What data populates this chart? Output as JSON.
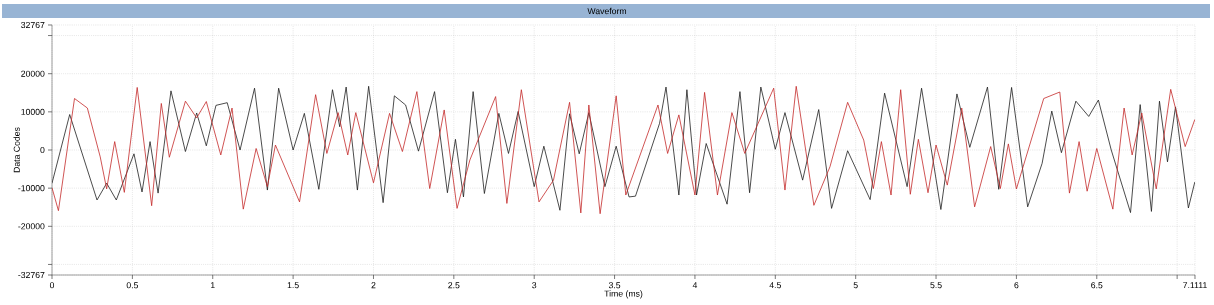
{
  "chart_data": {
    "type": "line",
    "title": "Waveform",
    "xlabel": "Time (ms)",
    "ylabel": "Data Codes",
    "xlim": [
      0,
      7.1111
    ],
    "ylim": [
      -32767,
      32767
    ],
    "xticks": [
      0,
      0.5,
      1,
      1.5,
      2,
      2.5,
      3,
      3.5,
      4,
      4.5,
      5,
      5.5,
      6,
      6.5,
      {
        "value": 7,
        "label": null
      },
      7.1111
    ],
    "yticks": [
      -32767,
      {
        "value": -30000,
        "label": null
      },
      -20000,
      -10000,
      0,
      10000,
      20000,
      {
        "value": 30000,
        "label": null
      },
      32767
    ],
    "grid": true,
    "series": [
      {
        "color": "#1e1e1e",
        "x": [
          0,
          0.11,
          0.28,
          0.34,
          0.4,
          0.51,
          0.56,
          0.61,
          0.66,
          0.74,
          0.83,
          0.9,
          0.96,
          1.02,
          1.09,
          1.17,
          1.26,
          1.34,
          1.41,
          1.5,
          1.57,
          1.66,
          1.745,
          1.79,
          1.83,
          1.9,
          1.97,
          2.06,
          2.13,
          2.2,
          2.28,
          2.38,
          2.46,
          2.51,
          2.56,
          2.62,
          2.69,
          2.78,
          2.84,
          2.9,
          3.0,
          3.06,
          3.16,
          3.22,
          3.28,
          3.34,
          3.44,
          3.51,
          3.59,
          3.63,
          3.78,
          3.82,
          3.9,
          3.95,
          4.01,
          4.07,
          4.2,
          4.28,
          4.34,
          4.41,
          4.5,
          4.56,
          4.67,
          4.77,
          4.85,
          4.95,
          5.09,
          5.18,
          5.32,
          5.41,
          5.53,
          5.63,
          5.71,
          5.82,
          5.89,
          5.97,
          6.07,
          6.16,
          6.22,
          6.28,
          6.37,
          6.45,
          6.51,
          6.59,
          6.71,
          6.77,
          6.84,
          6.89,
          6.94,
          6.99,
          7.07,
          7.11
        ],
        "values": [
          -8700,
          9300,
          -13100,
          -8700,
          -13100,
          -1000,
          -11000,
          2200,
          -11300,
          15500,
          -400,
          9700,
          1100,
          11700,
          12400,
          0,
          16200,
          -10500,
          16200,
          0,
          9600,
          -10300,
          15800,
          6100,
          16500,
          -10500,
          16700,
          -13800,
          14200,
          11800,
          -300,
          15300,
          -11200,
          2800,
          -12300,
          15300,
          -11400,
          9600,
          -900,
          10100,
          -9600,
          1000,
          -15800,
          9500,
          -1000,
          9800,
          -9600,
          1000,
          -12300,
          -12100,
          7000,
          16500,
          -11800,
          15800,
          -11800,
          1700,
          -14200,
          15300,
          -11200,
          16500,
          200,
          9800,
          -7900,
          10600,
          -15300,
          -200,
          -13000,
          14900,
          -9600,
          16200,
          -15600,
          14700,
          700,
          16500,
          -10300,
          16400,
          -14900,
          -3500,
          10200,
          -700,
          12800,
          8800,
          13100,
          0,
          -16400,
          11900,
          -16100,
          12800,
          -3100,
          11300,
          -15200,
          -8400
        ]
      },
      {
        "color": "#c42a2a",
        "x": [
          0,
          0.04,
          0.14,
          0.22,
          0.3,
          0.34,
          0.39,
          0.45,
          0.53,
          0.62,
          0.68,
          0.73,
          0.83,
          0.9,
          0.96,
          1.05,
          1.12,
          1.19,
          1.27,
          1.34,
          1.39,
          1.54,
          1.64,
          1.71,
          1.78,
          1.84,
          1.89,
          2.0,
          2.1,
          2.18,
          2.27,
          2.35,
          2.44,
          2.52,
          2.6,
          2.76,
          2.83,
          2.92,
          3.03,
          3.12,
          3.22,
          3.29,
          3.34,
          3.41,
          3.51,
          3.57,
          3.77,
          3.83,
          3.9,
          4.0,
          4.06,
          4.14,
          4.23,
          4.31,
          4.49,
          4.56,
          4.63,
          4.74,
          4.84,
          4.95,
          5.05,
          5.11,
          5.16,
          5.22,
          5.28,
          5.34,
          5.39,
          5.45,
          5.5,
          5.57,
          5.66,
          5.74,
          5.84,
          5.9,
          5.95,
          6.0,
          6.17,
          6.27,
          6.33,
          6.39,
          6.44,
          6.5,
          6.6,
          6.67,
          6.72,
          6.78,
          6.87,
          6.96,
          7.05,
          7.11
        ],
        "values": [
          -9900,
          -15900,
          13500,
          11000,
          -1800,
          -10200,
          2200,
          -11100,
          16400,
          -14600,
          12200,
          -1900,
          12800,
          8400,
          12700,
          -1300,
          11000,
          -15500,
          400,
          -9600,
          1300,
          -13600,
          14500,
          -900,
          9800,
          -1300,
          9800,
          -8600,
          9600,
          -400,
          15300,
          -10100,
          10500,
          -15300,
          -2600,
          14000,
          -14000,
          15800,
          -13600,
          -7900,
          12500,
          -16500,
          11800,
          -16700,
          14200,
          -11800,
          11800,
          -900,
          9200,
          -11800,
          15100,
          -11800,
          9800,
          -900,
          16200,
          -10500,
          16700,
          -14500,
          -4400,
          12500,
          2600,
          -10100,
          2200,
          -11800,
          15800,
          -11600,
          2800,
          -11200,
          1300,
          -9200,
          11000,
          -14900,
          900,
          -10100,
          1600,
          -10200,
          13500,
          15200,
          -11300,
          2200,
          -10800,
          400,
          -15500,
          11000,
          -1300,
          9700,
          -10200,
          15900,
          900,
          8000
        ]
      }
    ]
  }
}
